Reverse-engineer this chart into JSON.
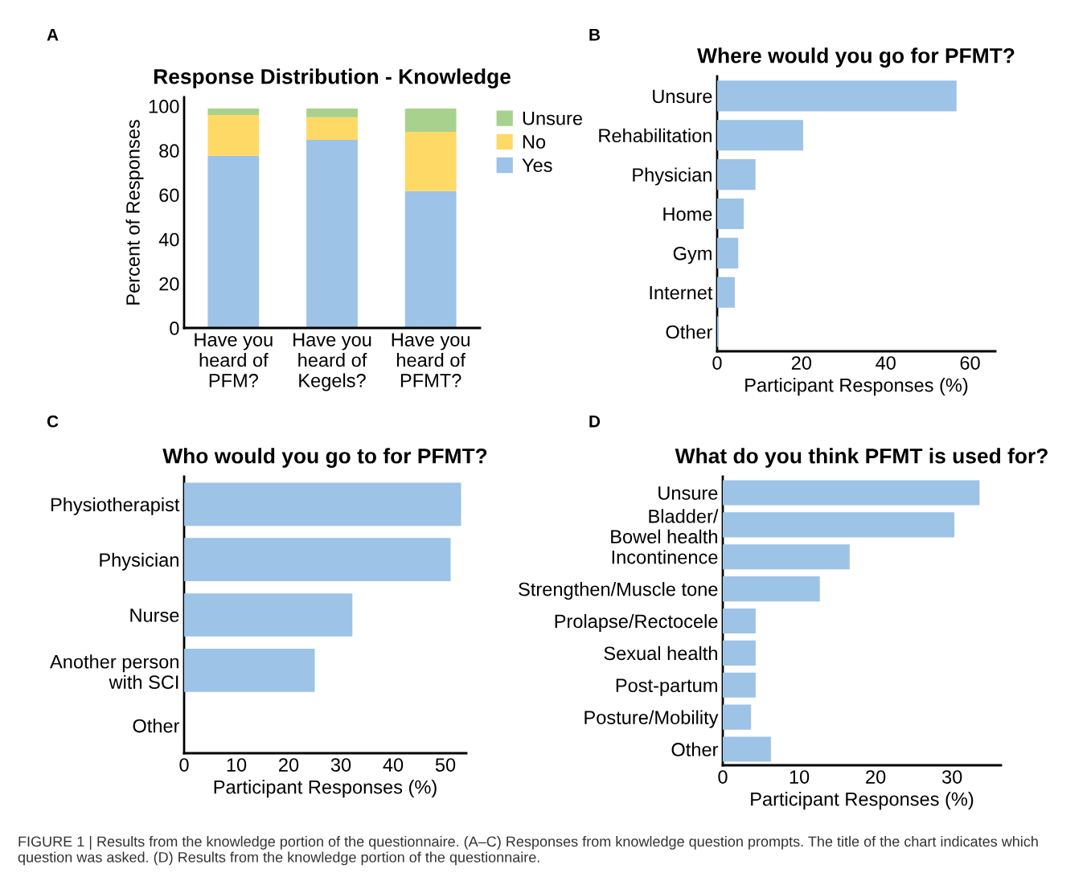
{
  "chart_data": [
    {
      "type": "bar",
      "title": "Response Distribution - Knowledge",
      "ylabel": "Percent of Responses",
      "annotations": [
        "A"
      ],
      "categories": [
        "Have you\nheard of\nPFM?",
        "Have you\nheard of\nKegels?",
        "Have you\nheard of\nPFMT?"
      ],
      "stacked": true,
      "legend": "right",
      "ylim": [
        0,
        104
      ],
      "yticks": [
        0,
        20,
        40,
        60,
        80,
        100
      ],
      "series": [
        {
          "name": "Yes",
          "color": "#9dc3e6",
          "values": [
            77.6,
            84.8,
            61.7
          ]
        },
        {
          "name": "No",
          "color": "#ffd966",
          "values": [
            18.4,
            10.2,
            26.7
          ]
        },
        {
          "name": "Unsure",
          "color": "#a9d18e",
          "values": [
            2.9,
            3.9,
            10.5
          ]
        }
      ]
    },
    {
      "type": "bar",
      "orientation": "horizontal",
      "title": "Where would you go for PFMT?",
      "xlabel": "Participant Responses (%)",
      "annotations": [
        "B"
      ],
      "categories": [
        "Unsure",
        "Rehabilitation",
        "Physician",
        "Home",
        "Gym",
        "Internet",
        "Other"
      ],
      "color": "#9dc3e6",
      "values": [
        56.8,
        20.4,
        9.1,
        6.3,
        5.0,
        4.2,
        0.4
      ],
      "xlim": [
        0,
        66
      ],
      "xticks": [
        0,
        20,
        40,
        60
      ]
    },
    {
      "type": "bar",
      "orientation": "horizontal",
      "title": "Who would you go to for PFMT?",
      "xlabel": "Participant Responses (%)",
      "annotations": [
        "C"
      ],
      "categories": [
        "Physiotherapist",
        "Physician",
        "Nurse",
        "Another person\nwith SCI",
        "Other"
      ],
      "color": "#9dc3e6",
      "values": [
        53.0,
        51.0,
        32.2,
        25.0,
        0
      ],
      "xlim": [
        0,
        54
      ],
      "xticks": [
        0,
        10,
        20,
        30,
        40,
        50
      ]
    },
    {
      "type": "bar",
      "orientation": "horizontal",
      "title": "What do you think PFMT is used for?",
      "xlabel": "Participant Responses (%)",
      "annotations": [
        "D",
        "FIGURE 1 | Results from the knowledge portion of the questionnaire. (A–C) Responses from knowledge question prompts. The title of the chart indicates which question was asked. (D) Results from the knowledge portion of the questionnaire."
      ],
      "categories": [
        "Unsure",
        "Bladder/\nBowel health",
        "Incontinence",
        "Strengthen/Muscle tone",
        "Prolapse/Rectocele",
        "Sexual health",
        "Post-partum",
        "Posture/Mobility",
        "Other"
      ],
      "color": "#9dc3e6",
      "values": [
        33.6,
        30.3,
        16.6,
        12.7,
        4.3,
        4.3,
        4.3,
        3.7,
        6.3
      ],
      "xlim": [
        0,
        36.4
      ],
      "xticks": [
        0,
        10,
        20,
        30
      ]
    }
  ]
}
